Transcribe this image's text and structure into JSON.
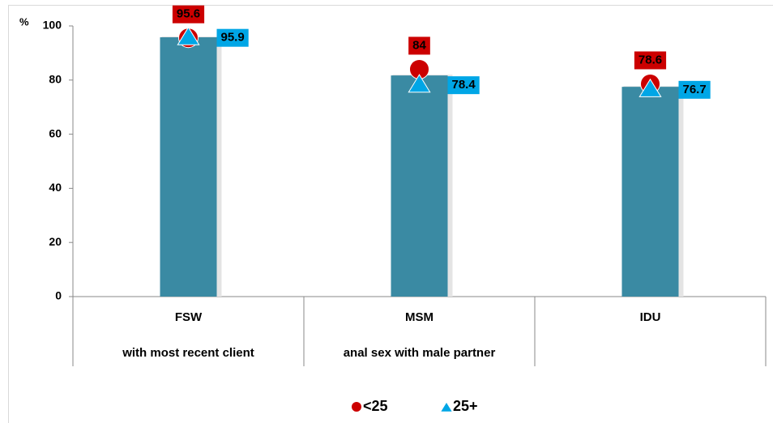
{
  "chart_data": {
    "type": "bar",
    "y_label": "%",
    "categories": [
      "FSW",
      "MSM",
      "IDU"
    ],
    "subcategories": [
      "with most recent client",
      "anal sex with male partner",
      null
    ],
    "bar_color": "#3a8aa3",
    "bar_values": [
      95.8,
      81.7,
      77.5
    ],
    "series": [
      {
        "name": "<25",
        "color": "#cc0000",
        "marker": "circle",
        "values": [
          95.6,
          84,
          78.6
        ]
      },
      {
        "name": "25+",
        "color": "#00a6e6",
        "marker": "triangle",
        "values": [
          95.9,
          78.4,
          76.7
        ]
      }
    ],
    "ylim": [
      0,
      100
    ],
    "yticks": [
      0,
      20,
      40,
      60,
      80,
      100
    ],
    "grid": false,
    "legend": "bottom"
  }
}
